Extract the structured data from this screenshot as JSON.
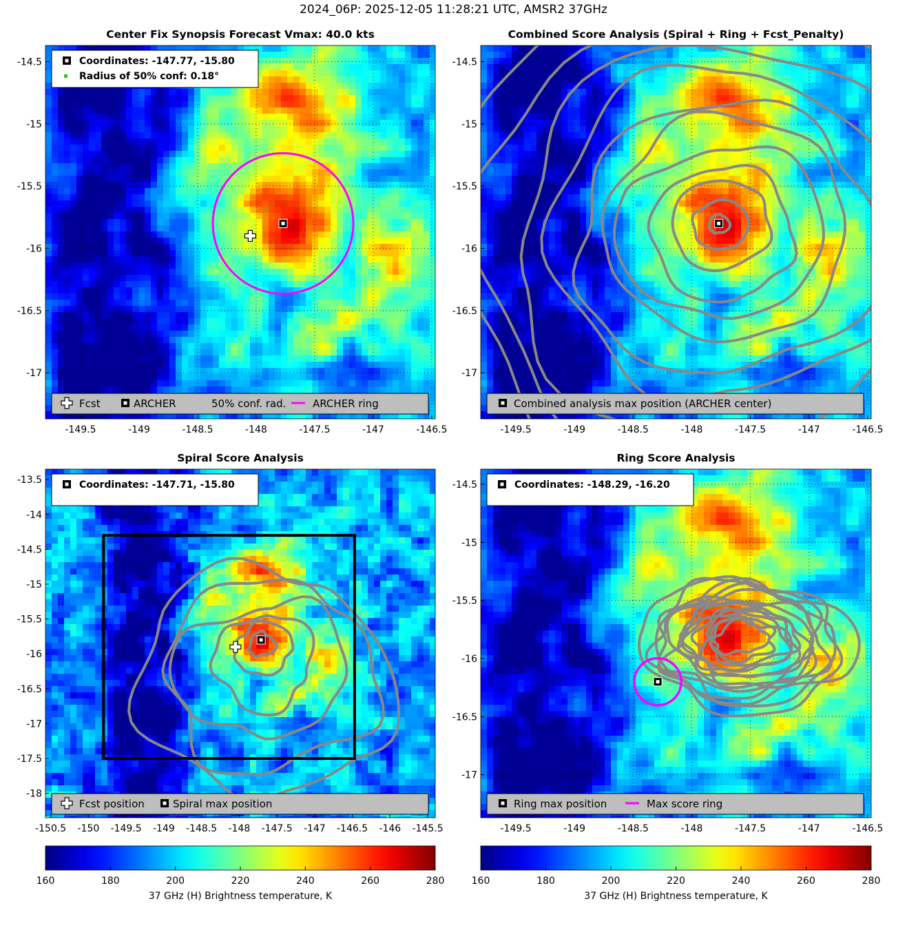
{
  "figure": {
    "title": "2024_06P: 2025-12-05 11:28:21 UTC, AMSR2 37GHz"
  },
  "colors": {
    "archer_ring": "#ff00ff",
    "conf_dots": "#22cc22",
    "contour": "#888888",
    "legend_bg": "#bebebe",
    "spiral_box": "#000000"
  },
  "colormap": "jet",
  "chart_data": [
    {
      "type": "heatmap",
      "id": "synopsis",
      "title": "Center Fix Synopsis     Forecast Vmax: 40.0 kts",
      "xlim": [
        -149.8,
        -146.47
      ],
      "ylim": [
        -17.37,
        -14.37
      ],
      "xticks": [
        -149.5,
        -149,
        -148.5,
        -148,
        -147.5,
        -147,
        -146.5
      ],
      "xtick_labels": [
        "-149.5",
        "-149",
        "-148.5",
        "-148",
        "-147.5",
        "-147",
        "-146.5"
      ],
      "yticks": [
        -14.5,
        -15,
        -15.5,
        -16,
        -16.5,
        -17
      ],
      "ytick_labels": [
        "-14.5",
        "-15",
        "-15.5",
        "-16",
        "-16.5",
        "-17"
      ],
      "grid": true,
      "info": [
        "Coordinates: -147.77, -15.80",
        "Radius of 50% conf: 0.18°"
      ],
      "archer_center": [
        -147.77,
        -15.8
      ],
      "forecast_position": [
        -148.05,
        -15.9
      ],
      "conf_radius_deg": 0.18,
      "archer_ring_radius_deg": 0.6,
      "legend": [
        "Fcst",
        "ARCHER",
        "50% conf. rad.",
        "ARCHER ring"
      ]
    },
    {
      "type": "heatmap",
      "id": "combined",
      "title": "Combined Score Analysis (Spiral + Ring + Fcst_Penalty)",
      "xlim": [
        -149.8,
        -146.47
      ],
      "ylim": [
        -17.37,
        -14.37
      ],
      "xticks": [
        -149.5,
        -149,
        -148.5,
        -148,
        -147.5,
        -147,
        -146.5
      ],
      "xtick_labels": [
        "-149.5",
        "-149",
        "-148.5",
        "-148",
        "-147.5",
        "-147",
        "-146.5"
      ],
      "yticks": [
        -14.5,
        -15,
        -15.5,
        -16,
        -16.5,
        -17
      ],
      "ytick_labels": [
        "-14.5",
        "-15",
        "-15.5",
        "-16",
        "-16.5",
        "-17"
      ],
      "grid": true,
      "max_position": [
        -147.77,
        -15.8
      ],
      "legend": [
        "Combined analysis max position (ARCHER center)"
      ]
    },
    {
      "type": "heatmap",
      "id": "spiral",
      "title": "Spiral Score Analysis",
      "xlim": [
        -150.57,
        -145.4
      ],
      "ylim": [
        -18.35,
        -13.35
      ],
      "xticks": [
        -150.5,
        -150,
        -149.5,
        -149,
        -148.5,
        -148,
        -147.5,
        -147,
        -146.5,
        -146,
        -145.5
      ],
      "xtick_labels": [
        "-150.5",
        "-150",
        "-149.5",
        "-149",
        "-148.5",
        "-148",
        "-147.5",
        "-147",
        "-146.5",
        "-146",
        "-145.5"
      ],
      "yticks": [
        -13.5,
        -14,
        -14.5,
        -15,
        -15.5,
        -16,
        -16.5,
        -17,
        -17.5,
        -18
      ],
      "ytick_labels": [
        "-13.5",
        "-14",
        "-14.5",
        "-15",
        "-15.5",
        "-16",
        "-16.5",
        "-17",
        "-17.5",
        "-18"
      ],
      "grid": false,
      "info": [
        "Coordinates: -147.71, -15.80"
      ],
      "max_position": [
        -147.71,
        -15.8
      ],
      "forecast_position": [
        -148.05,
        -15.9
      ],
      "search_box": {
        "lon": [
          -149.8,
          -146.47
        ],
        "lat": [
          -17.5,
          -14.3
        ]
      },
      "legend": [
        "Fcst position",
        "Spiral max position"
      ]
    },
    {
      "type": "heatmap",
      "id": "ring",
      "title": "Ring Score Analysis",
      "xlim": [
        -149.8,
        -146.47
      ],
      "ylim": [
        -17.37,
        -14.37
      ],
      "xticks": [
        -149.5,
        -149,
        -148.5,
        -148,
        -147.5,
        -147,
        -146.5
      ],
      "xtick_labels": [
        "-149.5",
        "-149",
        "-148.5",
        "-148",
        "-147.5",
        "-147",
        "-146.5"
      ],
      "yticks": [
        -14.5,
        -15,
        -15.5,
        -16,
        -16.5,
        -17
      ],
      "ytick_labels": [
        "-14.5",
        "-15",
        "-15.5",
        "-16",
        "-16.5",
        "-17"
      ],
      "grid": true,
      "info": [
        "Coordinates: -148.29, -16.20"
      ],
      "max_position": [
        -148.29,
        -16.2
      ],
      "max_ring_radius_deg": 0.2,
      "legend": [
        "Ring max position",
        "Max score ring"
      ]
    }
  ],
  "colorbars": [
    {
      "min": 160,
      "max": 280,
      "ticks": [
        160,
        180,
        200,
        220,
        240,
        260,
        280
      ],
      "tick_labels": [
        "160",
        "180",
        "200",
        "220",
        "240",
        "260",
        "280"
      ],
      "label": "37 GHz (H) Brightness temperature, K"
    },
    {
      "min": 160,
      "max": 280,
      "ticks": [
        160,
        180,
        200,
        220,
        240,
        260,
        280
      ],
      "tick_labels": [
        "160",
        "180",
        "200",
        "220",
        "240",
        "260",
        "280"
      ],
      "label": "37 GHz (H) Brightness temperature, K"
    }
  ]
}
